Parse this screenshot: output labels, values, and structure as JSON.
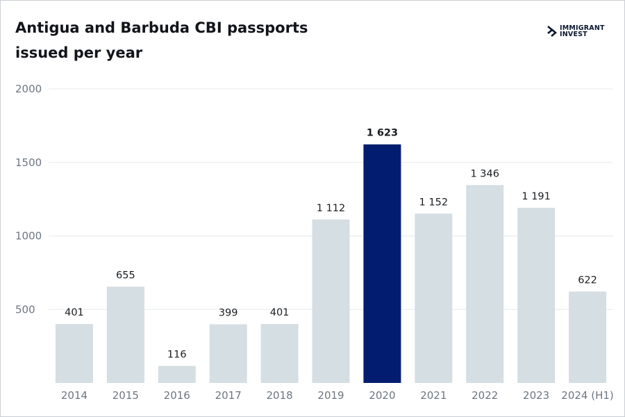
{
  "title_line1": "Antigua and Barbuda CBI passports",
  "title_line2": "issued per year",
  "logo": {
    "line1": "IMMIGRANT",
    "line2": "INVEST",
    "icon": "double-chevron-logo-icon"
  },
  "colors": {
    "bar": "#d5dee2",
    "highlight": "#021d6f",
    "grid": "#e6e9ec",
    "axis_text": "#6d7680"
  },
  "chart_data": {
    "type": "bar",
    "categories": [
      "2014",
      "2015",
      "2016",
      "2017",
      "2018",
      "2019",
      "2020",
      "2021",
      "2022",
      "2023",
      "2024 (H1)"
    ],
    "values": [
      401,
      655,
      116,
      399,
      401,
      1112,
      1623,
      1152,
      1346,
      1191,
      622
    ],
    "value_labels": [
      "401",
      "655",
      "116",
      "399",
      "401",
      "1 112",
      "1 623",
      "1 152",
      "1 346",
      "1 191",
      "622"
    ],
    "highlight": "2020",
    "title": "Antigua and Barbuda CBI passports issued per year",
    "xlabel": "",
    "ylabel": "",
    "ylim": [
      0,
      2000
    ],
    "yticks": [
      500,
      1000,
      1500,
      2000
    ],
    "grid": true
  }
}
